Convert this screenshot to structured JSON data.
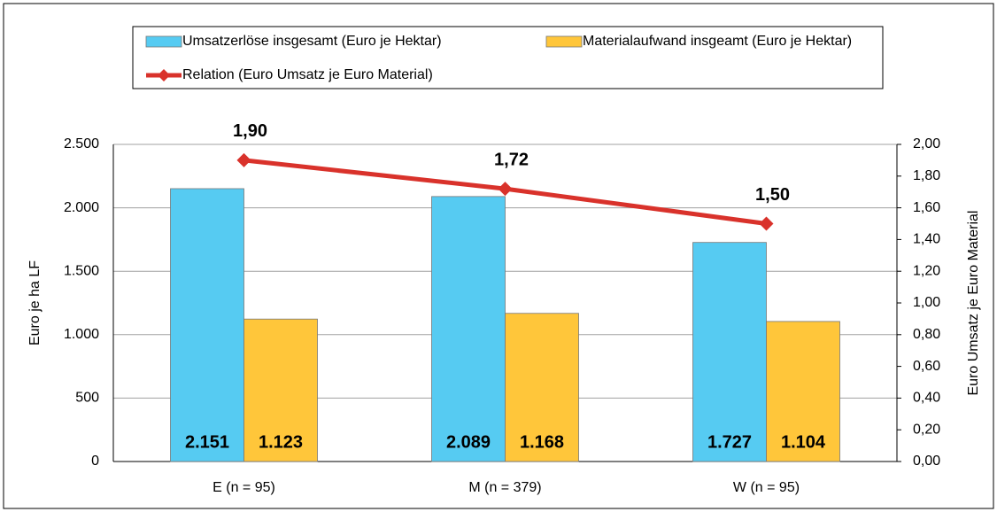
{
  "chart_data": {
    "type": "bar",
    "categories": [
      "E (n = 95)",
      "M (n = 379)",
      "W (n = 95)"
    ],
    "series": [
      {
        "name": "Umsatzerlöse insgesamt (Euro je Hektar)",
        "color": "#56cbf2",
        "values": [
          2151,
          2089,
          1727
        ],
        "value_labels": [
          "2.151",
          "2.089",
          "1.727"
        ]
      },
      {
        "name": "Materialaufwand insgeamt (Euro je Hektar)",
        "color": "#ffc63a",
        "values": [
          1123,
          1168,
          1104
        ],
        "value_labels": [
          "1.123",
          "1.168",
          "1.104"
        ]
      },
      {
        "name": "Relation (Euro Umsatz je Euro Material)",
        "color": "#d9322b",
        "type": "line",
        "axis": "y2",
        "values": [
          1.9,
          1.72,
          1.5
        ],
        "value_labels": [
          "1,90",
          "1,72",
          "1,50"
        ]
      }
    ],
    "ylabel": "Euro je ha LF",
    "y2label": "Euro Umsatz je Euro Material",
    "ylim": [
      0,
      2500
    ],
    "yticks": [
      0,
      500,
      {
        "value": 1000,
        "label": "1.000"
      },
      {
        "value": 1500,
        "label": "1.500"
      },
      {
        "value": 2000,
        "label": "2.000"
      },
      {
        "value": 2500,
        "label": "2.500"
      }
    ],
    "y2lim": [
      0,
      2
    ],
    "y2ticks": [
      {
        "value": 0,
        "label": "0,00"
      },
      {
        "value": 0.2,
        "label": "0,20"
      },
      {
        "value": 0.4,
        "label": "0,40"
      },
      {
        "value": 0.6,
        "label": "0,60"
      },
      {
        "value": 0.8,
        "label": "0,80"
      },
      {
        "value": 1,
        "label": "1,00"
      },
      {
        "value": 1.2,
        "label": "1,20"
      },
      {
        "value": 1.4,
        "label": "1,40"
      },
      {
        "value": 1.6,
        "label": "1,60"
      },
      {
        "value": 1.8,
        "label": "1,80"
      },
      {
        "value": 2,
        "label": "2,00"
      }
    ],
    "grid": true,
    "legend": "top"
  }
}
